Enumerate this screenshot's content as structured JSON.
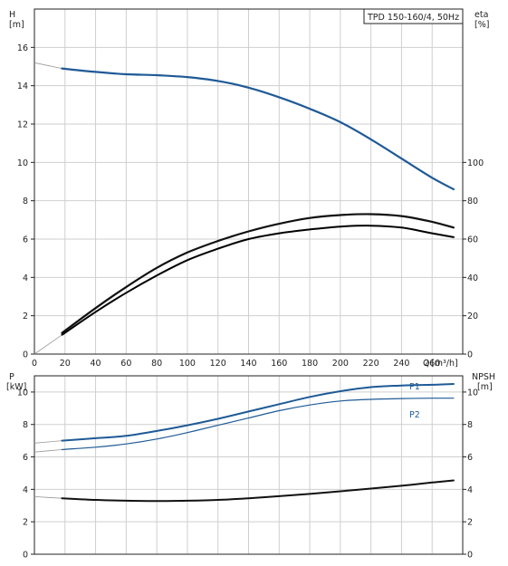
{
  "chart_data": {
    "type": "line",
    "title": "TPD 150-160/4, 50Hz",
    "x_axis": {
      "label_left": "Q",
      "unit": "[m³/h]",
      "range": [
        0,
        280
      ],
      "ticks": [
        0,
        20,
        40,
        60,
        80,
        100,
        120,
        140,
        160,
        180,
        200,
        220,
        240,
        260
      ]
    },
    "top_panel": {
      "left_axis": {
        "label": "H",
        "unit": "[m]",
        "range": [
          0,
          18
        ],
        "ticks": [
          0,
          2,
          4,
          6,
          8,
          10,
          12,
          14,
          16
        ]
      },
      "right_axis": {
        "label": "eta",
        "unit": "[%]",
        "range": [
          0,
          180
        ],
        "ticks": [
          0,
          20,
          40,
          60,
          80,
          100
        ]
      },
      "series": [
        {
          "id": "H",
          "axis": "left",
          "color": "#1f5a96",
          "dashed_lead_in": [
            [
              0,
              15.2
            ],
            [
              18,
              14.9
            ]
          ],
          "points": [
            [
              18,
              14.9
            ],
            [
              40,
              14.72
            ],
            [
              60,
              14.6
            ],
            [
              80,
              14.55
            ],
            [
              100,
              14.45
            ],
            [
              120,
              14.25
            ],
            [
              140,
              13.9
            ],
            [
              160,
              13.4
            ],
            [
              180,
              12.8
            ],
            [
              200,
              12.1
            ],
            [
              220,
              11.2
            ],
            [
              240,
              10.2
            ],
            [
              260,
              9.2
            ],
            [
              274,
              8.6
            ]
          ]
        },
        {
          "id": "eta",
          "axis": "right",
          "color": "#111111",
          "points": [
            [
              18,
              11
            ],
            [
              40,
              24
            ],
            [
              60,
              35
            ],
            [
              80,
              45
            ],
            [
              100,
              53
            ],
            [
              120,
              59
            ],
            [
              140,
              64
            ],
            [
              160,
              68
            ],
            [
              180,
              71
            ],
            [
              200,
              72.5
            ],
            [
              220,
              73
            ],
            [
              240,
              72
            ],
            [
              260,
              69
            ],
            [
              274,
              66
            ]
          ]
        },
        {
          "id": "eta_ref",
          "axis": "right",
          "color": "#000000",
          "width": 2,
          "points": [
            [
              18,
              10
            ],
            [
              40,
              22
            ],
            [
              60,
              32
            ],
            [
              80,
              41
            ],
            [
              100,
              49
            ],
            [
              120,
              55
            ],
            [
              140,
              60
            ],
            [
              160,
              63
            ],
            [
              180,
              65
            ],
            [
              200,
              66.5
            ],
            [
              220,
              67
            ],
            [
              240,
              66
            ],
            [
              260,
              63
            ],
            [
              274,
              61
            ]
          ]
        }
      ]
    },
    "bottom_panel": {
      "left_axis": {
        "label": "P",
        "unit": "[kW]",
        "range": [
          0,
          11
        ],
        "ticks": [
          0,
          2,
          4,
          6,
          8,
          10
        ]
      },
      "right_axis": {
        "label": "NPSH",
        "unit": "[m]",
        "range": [
          0,
          11
        ],
        "ticks": [
          0,
          2,
          4,
          6,
          8,
          10
        ]
      },
      "series": [
        {
          "id": "P1",
          "name": "P1",
          "axis": "left",
          "color": "#1f5a96",
          "width": 2,
          "dashed_lead_in": [
            [
              0,
              6.85
            ],
            [
              18,
              7.0
            ]
          ],
          "points": [
            [
              18,
              7.0
            ],
            [
              40,
              7.15
            ],
            [
              60,
              7.3
            ],
            [
              80,
              7.6
            ],
            [
              100,
              7.95
            ],
            [
              120,
              8.35
            ],
            [
              140,
              8.8
            ],
            [
              160,
              9.25
            ],
            [
              180,
              9.7
            ],
            [
              200,
              10.05
            ],
            [
              220,
              10.3
            ],
            [
              240,
              10.4
            ],
            [
              260,
              10.45
            ],
            [
              274,
              10.5
            ]
          ]
        },
        {
          "id": "P2",
          "name": "P2",
          "axis": "left",
          "color": "#1f5a96",
          "width": 1.2,
          "dashed_lead_in": [
            [
              0,
              6.3
            ],
            [
              18,
              6.45
            ]
          ],
          "points": [
            [
              18,
              6.45
            ],
            [
              40,
              6.6
            ],
            [
              60,
              6.8
            ],
            [
              80,
              7.1
            ],
            [
              100,
              7.5
            ],
            [
              120,
              7.95
            ],
            [
              140,
              8.4
            ],
            [
              160,
              8.85
            ],
            [
              180,
              9.2
            ],
            [
              200,
              9.45
            ],
            [
              220,
              9.55
            ],
            [
              240,
              9.6
            ],
            [
              260,
              9.62
            ],
            [
              274,
              9.62
            ]
          ]
        },
        {
          "id": "NPSH",
          "axis": "right",
          "color": "#111111",
          "width": 2,
          "dashed_lead_in": [
            [
              0,
              3.55
            ],
            [
              18,
              3.45
            ]
          ],
          "points": [
            [
              18,
              3.45
            ],
            [
              40,
              3.35
            ],
            [
              60,
              3.3
            ],
            [
              80,
              3.28
            ],
            [
              100,
              3.3
            ],
            [
              120,
              3.35
            ],
            [
              140,
              3.45
            ],
            [
              160,
              3.58
            ],
            [
              180,
              3.72
            ],
            [
              200,
              3.88
            ],
            [
              220,
              4.05
            ],
            [
              240,
              4.22
            ],
            [
              260,
              4.42
            ],
            [
              274,
              4.55
            ]
          ]
        }
      ]
    }
  }
}
